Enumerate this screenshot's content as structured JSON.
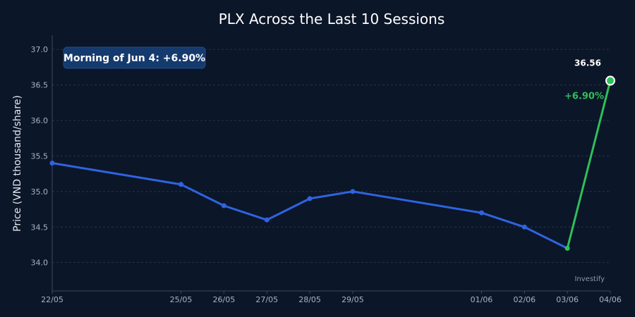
{
  "chart_data": {
    "type": "line",
    "title": "PLX Across the Last 10 Sessions",
    "ylabel": "Price (VND thousand/share)",
    "xlabel": "",
    "ylim": [
      33.6,
      37.2
    ],
    "yticks": [
      34.0,
      34.5,
      35.0,
      35.5,
      36.0,
      36.5,
      37.0
    ],
    "x": [
      "22/05",
      "25/05",
      "26/05",
      "27/05",
      "28/05",
      "29/05",
      "01/06",
      "02/06",
      "03/06",
      "04/06"
    ],
    "x_dates": [
      "2020-05-22",
      "2020-05-25",
      "2020-05-26",
      "2020-05-27",
      "2020-05-28",
      "2020-05-29",
      "2020-06-01",
      "2020-06-02",
      "2020-06-03",
      "2020-06-04"
    ],
    "series": [
      {
        "values": [
          35.4,
          35.1,
          34.8,
          34.6,
          34.9,
          35.0,
          34.7,
          34.5,
          34.2,
          36.56
        ],
        "color": "#2f63e0",
        "last_segment_color": "#2fbf5a"
      }
    ],
    "annotations": {
      "badge": "Morning of Jun 4: +6.90%",
      "last_value_label": "36.56",
      "change_label": "+6.90%",
      "change_color": "#2fbf5a"
    },
    "watermark": "Investify",
    "grid": true,
    "legend": "none"
  }
}
